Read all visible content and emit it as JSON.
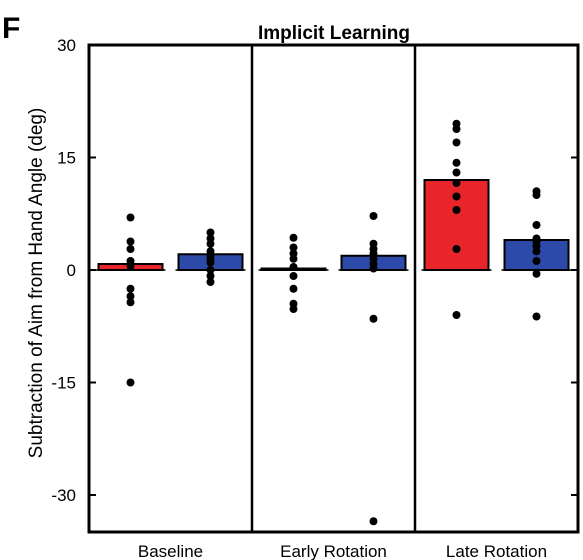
{
  "panel_letter": "F",
  "chart_data": {
    "type": "bar",
    "title": "Implicit Learning",
    "ylabel": "Subtraction of Aim from Hand Angle (deg)",
    "xlabel": "",
    "ylim": [
      -35,
      30
    ],
    "yticks": [
      30,
      15,
      0,
      -15,
      -30
    ],
    "ytick_labels": [
      "30",
      "15",
      "0",
      "-15",
      "-30"
    ],
    "categories": [
      "Baseline",
      "Early Rotation",
      "Late Rotation"
    ],
    "grid": false,
    "legend": "none",
    "series": [
      {
        "color": "#e8252b",
        "values": [
          0.8,
          0.2,
          12.0
        ],
        "points": [
          [
            7.0,
            3.8,
            2.8,
            1.2,
            0.5,
            -2.5,
            -3.5,
            -4.3,
            -15.0
          ],
          [
            4.3,
            3.0,
            2.2,
            1.5,
            0.4,
            -0.8,
            -2.5,
            -4.5,
            -5.2
          ],
          [
            19.5,
            18.8,
            17.0,
            14.3,
            13.0,
            11.6,
            9.8,
            8.0,
            2.8,
            -6.0
          ]
        ]
      },
      {
        "color": "#2e4aa8",
        "values": [
          2.1,
          1.9,
          4.0
        ],
        "points": [
          [
            5.0,
            4.2,
            3.5,
            2.5,
            2.0,
            1.5,
            1.0,
            0.0,
            -0.8,
            -1.6
          ],
          [
            7.2,
            3.5,
            2.8,
            2.2,
            1.5,
            0.8,
            0.2,
            -6.5,
            -33.5
          ],
          [
            10.5,
            10.0,
            6.0,
            4.2,
            3.8,
            3.2,
            2.5,
            1.2,
            -0.5,
            -6.2
          ]
        ]
      }
    ]
  }
}
